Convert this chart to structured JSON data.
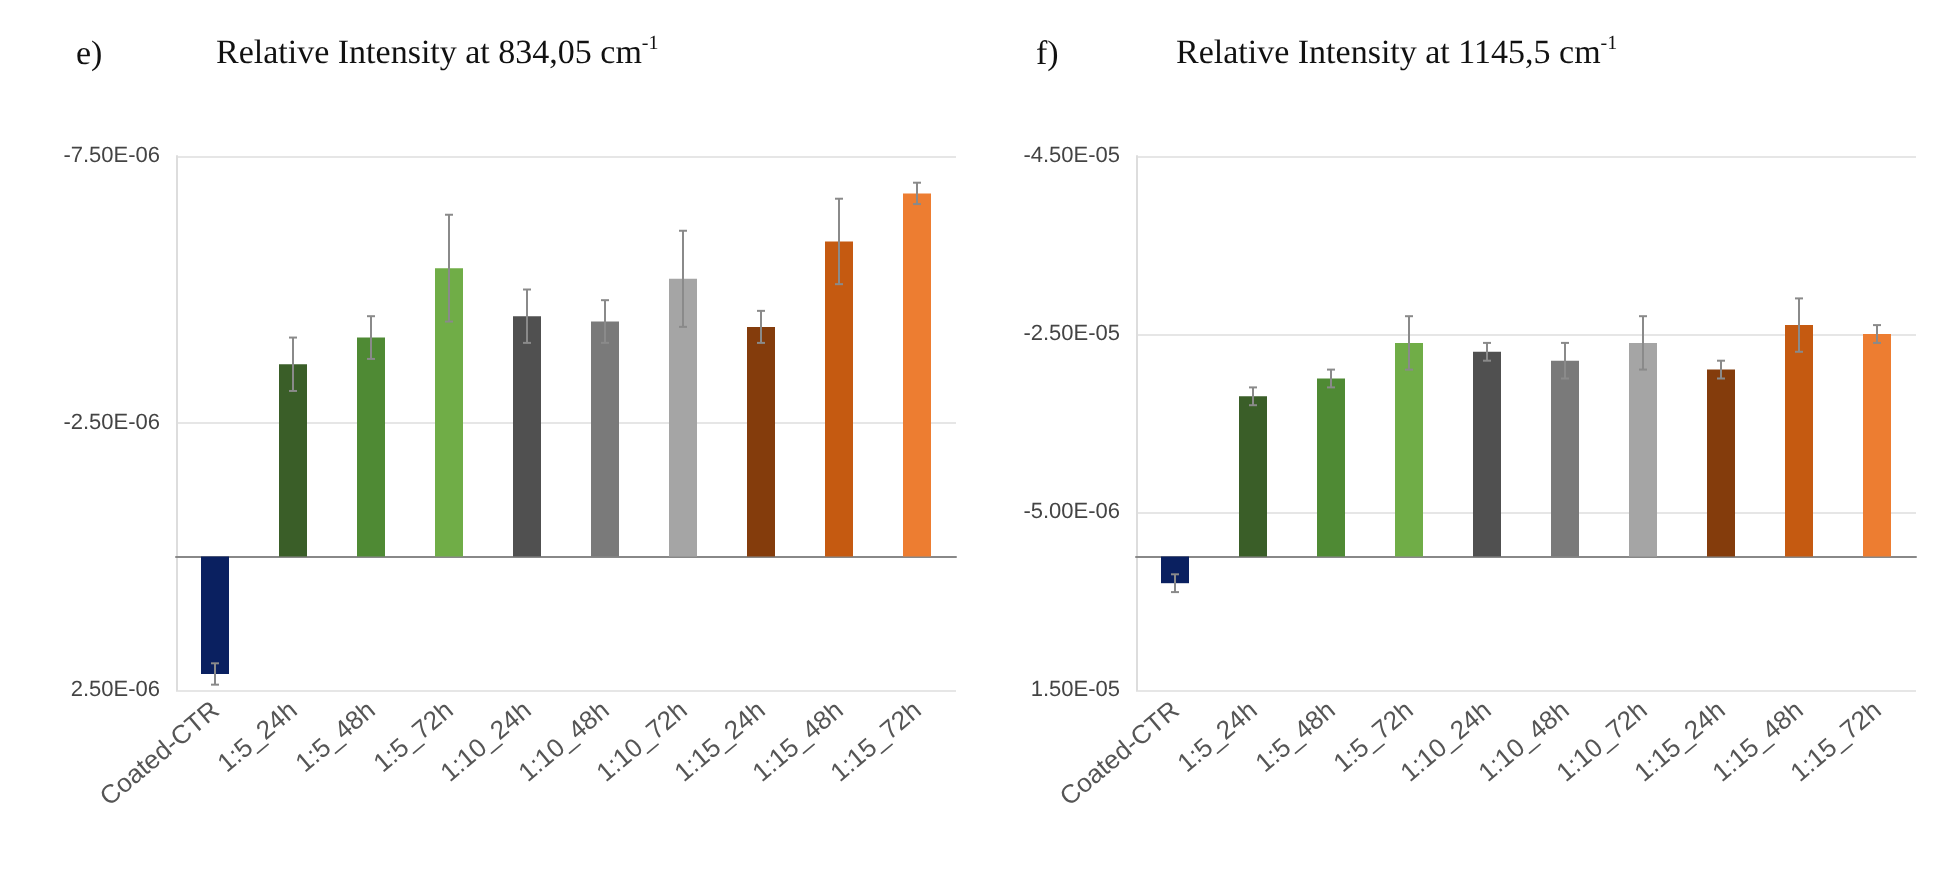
{
  "chart_data": [
    {
      "type": "bar",
      "title": "Relative Intensity at 834,05 cm$^{-1}$",
      "annotations": [
        "e)"
      ],
      "categories": [
        "Coated-CTR",
        "1:5_24h",
        "1:5_48h",
        "1:5_72h",
        "1:10_24h",
        "1:10_48h",
        "1:10_72h",
        "1:15_24h",
        "1:15_48h",
        "1:15_72h"
      ],
      "values": [
        2.2e-06,
        -3.6e-06,
        -4.1e-06,
        -5.4e-06,
        -4.5e-06,
        -4.4e-06,
        -5.2e-06,
        -4.3e-06,
        -5.9e-06,
        -6.8e-06
      ],
      "errors": [
        2e-07,
        5e-07,
        4e-07,
        1e-06,
        5e-07,
        4e-07,
        9e-07,
        3e-07,
        8e-07,
        2e-07
      ],
      "colors": [
        "#0a2060",
        "#3a5e28",
        "#4f8a34",
        "#70ad47",
        "#505050",
        "#7a7a7a",
        "#a5a5a5",
        "#843c0c",
        "#c55a11",
        "#ed7d31"
      ],
      "ylim": [
        2.5e-06,
        -7.5e-06
      ],
      "yticks": [
        {
          "value": -7.5e-06,
          "label": "-7.50E-06"
        },
        {
          "value": -2.5e-06,
          "label": "-2.50E-06"
        },
        {
          "value": 2.5e-06,
          "label": "2.50E-06"
        }
      ],
      "grid": "y"
    },
    {
      "type": "bar",
      "title": "Relative Intensity at 1145,5 cm$^{-1}$",
      "annotations": [
        "f)"
      ],
      "categories": [
        "Coated-CTR",
        "1:5_24h",
        "1:5_48h",
        "1:5_72h",
        "1:10_24h",
        "1:10_48h",
        "1:10_72h",
        "1:15_24h",
        "1:15_48h",
        "1:15_72h"
      ],
      "values": [
        3e-06,
        -1.8e-05,
        -2e-05,
        -2.4e-05,
        -2.3e-05,
        -2.2e-05,
        -2.4e-05,
        -2.1e-05,
        -2.6e-05,
        -2.5e-05
      ],
      "errors": [
        1e-06,
        1e-06,
        1e-06,
        3e-06,
        1e-06,
        2e-06,
        3e-06,
        1e-06,
        3e-06,
        1e-06
      ],
      "colors": [
        "#0a2060",
        "#3a5e28",
        "#4f8a34",
        "#70ad47",
        "#505050",
        "#7a7a7a",
        "#a5a5a5",
        "#843c0c",
        "#c55a11",
        "#ed7d31"
      ],
      "ylim": [
        1.5e-05,
        -4.5e-05
      ],
      "yticks": [
        {
          "value": -4.5e-05,
          "label": "-4.50E-05"
        },
        {
          "value": -2.5e-05,
          "label": "-2.50E-05"
        },
        {
          "value": -5e-06,
          "label": "-5.00E-06"
        },
        {
          "value": 1.5e-05,
          "label": "1.50E-05"
        }
      ],
      "grid": "y"
    }
  ]
}
